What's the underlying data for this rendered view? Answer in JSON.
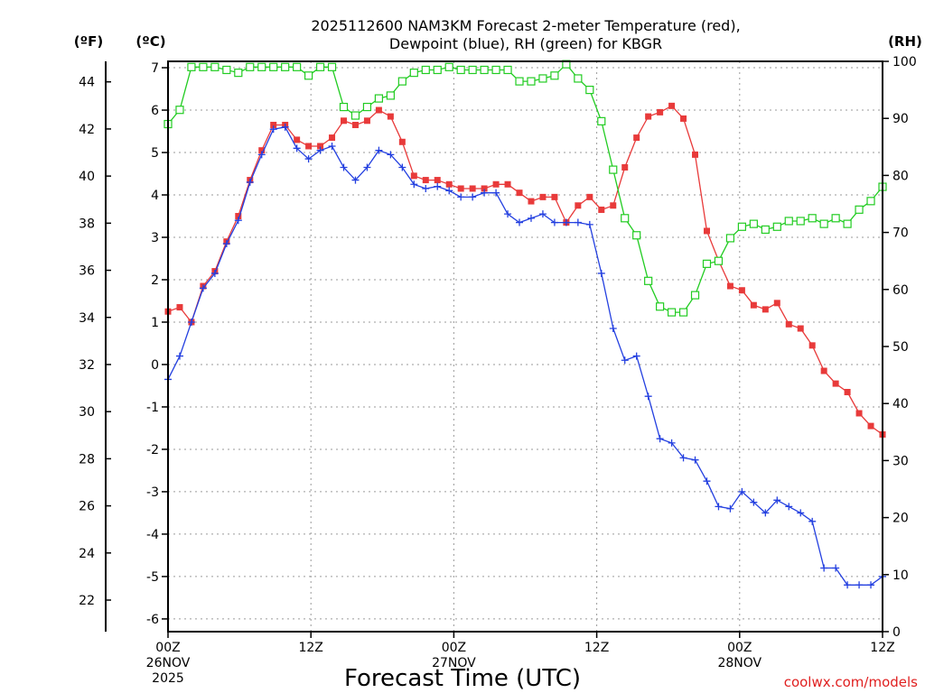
{
  "chart_data": {
    "type": "line",
    "title_line1": "2025112600 NAM3KM Forecast 2-meter Temperature (red),",
    "title_line2": "Dewpoint (blue), RH (green) for KBGR",
    "xlabel": "Forecast Time (UTC)",
    "credit": "coolwx.com/models",
    "unit_f": "(ºF)",
    "unit_c": "(ºC)",
    "unit_rh": "(RH)",
    "x_range_hours": [
      0,
      60
    ],
    "left_c_range": [
      -6.3,
      7.15
    ],
    "right_rh_range": [
      0,
      100
    ],
    "x_ticks": [
      {
        "hour": 0,
        "label": "00Z",
        "sub1": "26NOV",
        "sub2": "2025"
      },
      {
        "hour": 12,
        "label": "12Z",
        "sub1": "",
        "sub2": ""
      },
      {
        "hour": 24,
        "label": "00Z",
        "sub1": "27NOV",
        "sub2": ""
      },
      {
        "hour": 36,
        "label": "12Z",
        "sub1": "",
        "sub2": ""
      },
      {
        "hour": 48,
        "label": "00Z",
        "sub1": "28NOV",
        "sub2": ""
      },
      {
        "hour": 60,
        "label": "12Z",
        "sub1": "",
        "sub2": ""
      }
    ],
    "c_ticks": [
      "-6",
      "-5",
      "-4",
      "-3",
      "-2",
      "-1",
      "0",
      "1",
      "2",
      "3",
      "4",
      "5",
      "6",
      "7"
    ],
    "f_ticks": [
      "22",
      "24",
      "26",
      "28",
      "30",
      "32",
      "34",
      "36",
      "38",
      "40",
      "42",
      "44"
    ],
    "rh_ticks": [
      "0",
      "10",
      "20",
      "30",
      "40",
      "50",
      "60",
      "70",
      "80",
      "90",
      "100"
    ],
    "colors": {
      "temperature": "#e83a3a",
      "dewpoint": "#2440e0",
      "rh": "#22cc22"
    },
    "series": [
      {
        "name": "Temperature (°C)",
        "key": "temperature",
        "marker": "square-filled",
        "values": [
          1.25,
          1.35,
          1.0,
          1.85,
          2.2,
          2.9,
          3.5,
          4.35,
          5.05,
          5.65,
          5.65,
          5.3,
          5.15,
          5.15,
          5.35,
          5.75,
          5.65,
          5.75,
          6.0,
          5.85,
          5.25,
          4.45,
          4.35,
          4.35,
          4.25,
          4.15,
          4.15,
          4.15,
          4.25,
          4.25,
          4.05,
          3.85,
          3.95,
          3.95,
          3.35,
          3.75,
          3.95,
          3.65,
          3.75,
          4.65,
          5.35,
          5.85,
          5.95,
          6.1,
          5.8,
          4.95,
          3.15,
          2.45,
          1.85,
          1.75,
          1.4,
          1.3,
          1.45,
          0.95,
          0.85,
          0.45,
          -0.15,
          -0.45,
          -0.65,
          -1.15,
          -1.45,
          -1.65
        ]
      },
      {
        "name": "Dewpoint (°C)",
        "key": "dewpoint",
        "marker": "plus",
        "values": [
          -0.35,
          0.2,
          1.0,
          1.8,
          2.15,
          2.85,
          3.4,
          4.3,
          4.95,
          5.55,
          5.6,
          5.1,
          4.85,
          5.05,
          5.15,
          4.65,
          4.35,
          4.65,
          5.05,
          4.95,
          4.65,
          4.25,
          4.15,
          4.2,
          4.1,
          3.95,
          3.95,
          4.05,
          4.05,
          3.55,
          3.35,
          3.45,
          3.55,
          3.35,
          3.35,
          3.35,
          3.3,
          2.15,
          0.85,
          0.1,
          0.2,
          -0.75,
          -1.75,
          -1.85,
          -2.2,
          -2.25,
          -2.75,
          -3.35,
          -3.4,
          -3.0,
          -3.25,
          -3.5,
          -3.2,
          -3.35,
          -3.5,
          -3.7,
          -4.8,
          -4.8,
          -5.2,
          -5.2,
          -5.2,
          -5.0
        ]
      },
      {
        "name": "RH (%)",
        "key": "rh",
        "marker": "square-open",
        "values": [
          89,
          91.5,
          99,
          99,
          99,
          98.5,
          98,
          99,
          99,
          99,
          99,
          99,
          97.5,
          99,
          99,
          92,
          90.5,
          92,
          93.5,
          94,
          96.5,
          98,
          98.5,
          98.5,
          99,
          98.5,
          98.5,
          98.5,
          98.5,
          98.5,
          96.5,
          96.5,
          97,
          97.5,
          99.5,
          97,
          95,
          89.5,
          81,
          72.5,
          69.5,
          61.5,
          57,
          56,
          56,
          59,
          64.5,
          65,
          69,
          71,
          71.5,
          70.5,
          71,
          72,
          72,
          72.5,
          71.5,
          72.5,
          71.5,
          74,
          75.5,
          78
        ]
      }
    ]
  }
}
